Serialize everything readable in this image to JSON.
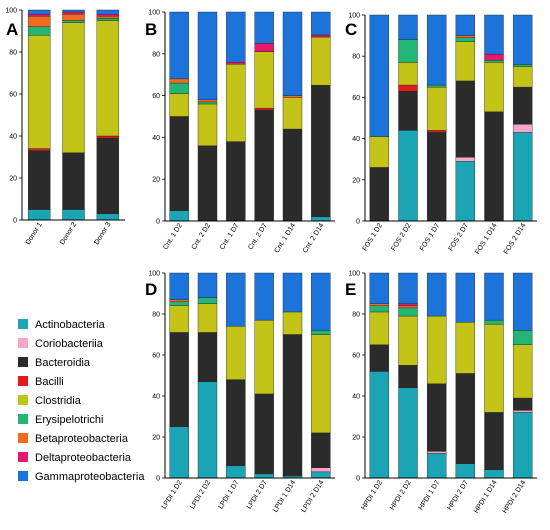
{
  "taxa": [
    {
      "name": "Actinobacteria",
      "color": "#1BA4B3"
    },
    {
      "name": "Coriobacteriia",
      "color": "#F4A7C8"
    },
    {
      "name": "Bacteroidia",
      "color": "#2B2B2B"
    },
    {
      "name": "Bacilli",
      "color": "#E31A1C"
    },
    {
      "name": "Clostridia",
      "color": "#C3C318"
    },
    {
      "name": "Erysipelotrichi",
      "color": "#22B573"
    },
    {
      "name": "Betaproteobacteria",
      "color": "#F26B21"
    },
    {
      "name": "Deltaproteobacteria",
      "color": "#E6186A"
    },
    {
      "name": "Gammaproteobacteria",
      "color": "#1C73D9"
    }
  ],
  "chart_data": [
    {
      "type": "bar",
      "panel": "A",
      "stacked": true,
      "ylim": [
        0,
        100
      ],
      "yticks": [
        0,
        20,
        40,
        60,
        80,
        100
      ],
      "categories": [
        "Donor 1",
        "Donor 2",
        "Donor 3"
      ],
      "series": [
        {
          "name": "Actinobacteria",
          "values": [
            5,
            5,
            3
          ]
        },
        {
          "name": "Coriobacteriia",
          "values": [
            0,
            0,
            0
          ]
        },
        {
          "name": "Bacteroidia",
          "values": [
            28,
            27,
            36
          ]
        },
        {
          "name": "Bacilli",
          "values": [
            1,
            0,
            1
          ]
        },
        {
          "name": "Clostridia",
          "values": [
            54,
            62,
            55
          ]
        },
        {
          "name": "Erysipelotrichi",
          "values": [
            4,
            1,
            1
          ]
        },
        {
          "name": "Betaproteobacteria",
          "values": [
            5,
            3,
            1
          ]
        },
        {
          "name": "Deltaproteobacteria",
          "values": [
            1,
            1,
            1
          ]
        },
        {
          "name": "Gammaproteobacteria",
          "values": [
            2,
            1,
            2
          ]
        }
      ]
    },
    {
      "type": "bar",
      "panel": "B",
      "stacked": true,
      "ylim": [
        0,
        100
      ],
      "yticks": [
        0,
        20,
        40,
        60,
        80,
        100
      ],
      "categories": [
        "Cnt. 1 D2",
        "Cnt. 2 D2",
        "Cnt. 1 D7",
        "Cnt. 2 D7",
        "Cnt. 1 D14",
        "Cnt. 2 D14"
      ],
      "series": [
        {
          "name": "Actinobacteria",
          "values": [
            5,
            0,
            0,
            0,
            0,
            2
          ]
        },
        {
          "name": "Coriobacteriia",
          "values": [
            0,
            0,
            0,
            0,
            0,
            0
          ]
        },
        {
          "name": "Bacteroidia",
          "values": [
            45,
            36,
            38,
            53,
            44,
            63
          ]
        },
        {
          "name": "Bacilli",
          "values": [
            0,
            0,
            0,
            1,
            0,
            0
          ]
        },
        {
          "name": "Clostridia",
          "values": [
            11,
            20,
            37,
            27,
            15,
            23
          ]
        },
        {
          "name": "Erysipelotrichi",
          "values": [
            5,
            1,
            0,
            0,
            0,
            0
          ]
        },
        {
          "name": "Betaproteobacteria",
          "values": [
            2,
            1,
            0,
            0,
            1,
            0
          ]
        },
        {
          "name": "Deltaproteobacteria",
          "values": [
            0,
            0,
            1,
            4,
            0,
            1
          ]
        },
        {
          "name": "Gammaproteobacteria",
          "values": [
            32,
            42,
            24,
            15,
            40,
            11
          ]
        }
      ]
    },
    {
      "type": "bar",
      "panel": "C",
      "stacked": true,
      "ylim": [
        0,
        100
      ],
      "yticks": [
        0,
        20,
        40,
        60,
        80,
        100
      ],
      "categories": [
        "FOS 1 D2",
        "FOS 2 D2",
        "FOS 1 D7",
        "FOS 2 D7",
        "FOS 1 D14",
        "FOS 2 D14"
      ],
      "series": [
        {
          "name": "Actinobacteria",
          "values": [
            0,
            44,
            0,
            29,
            0,
            43
          ]
        },
        {
          "name": "Coriobacteriia",
          "values": [
            0,
            0,
            0,
            2,
            0,
            4
          ]
        },
        {
          "name": "Bacteroidia",
          "values": [
            26,
            19,
            43,
            37,
            53,
            18
          ]
        },
        {
          "name": "Bacilli",
          "values": [
            0,
            3,
            1,
            0,
            0,
            0
          ]
        },
        {
          "name": "Clostridia",
          "values": [
            15,
            11,
            21,
            19,
            24,
            10
          ]
        },
        {
          "name": "Erysipelotrichi",
          "values": [
            0,
            11,
            1,
            2,
            1,
            1
          ]
        },
        {
          "name": "Betaproteobacteria",
          "values": [
            0,
            0,
            0,
            1,
            0,
            0
          ]
        },
        {
          "name": "Deltaproteobacteria",
          "values": [
            0,
            0,
            0,
            0,
            3,
            0
          ]
        },
        {
          "name": "Gammaproteobacteria",
          "values": [
            59,
            12,
            34,
            10,
            19,
            24
          ]
        }
      ]
    },
    {
      "type": "bar",
      "panel": "D",
      "stacked": true,
      "ylim": [
        0,
        100
      ],
      "yticks": [
        0,
        20,
        40,
        60,
        80,
        100
      ],
      "categories": [
        "LPDI 1 D2",
        "LPDI 2 D2",
        "LPDI 1 D7",
        "LPDI 2 D7",
        "LPDI 1 D14",
        "LPDI 2 D14"
      ],
      "series": [
        {
          "name": "Actinobacteria",
          "values": [
            25,
            47,
            6,
            2,
            1,
            3
          ]
        },
        {
          "name": "Coriobacteriia",
          "values": [
            0,
            0,
            0,
            0,
            0,
            2
          ]
        },
        {
          "name": "Bacteroidia",
          "values": [
            46,
            24,
            42,
            39,
            69,
            17
          ]
        },
        {
          "name": "Bacilli",
          "values": [
            0,
            0,
            0,
            0,
            0,
            0
          ]
        },
        {
          "name": "Clostridia",
          "values": [
            13,
            14,
            26,
            36,
            11,
            48
          ]
        },
        {
          "name": "Erysipelotrichi",
          "values": [
            2,
            3,
            0,
            0,
            0,
            2
          ]
        },
        {
          "name": "Betaproteobacteria",
          "values": [
            1,
            0,
            0,
            0,
            0,
            0
          ]
        },
        {
          "name": "Deltaproteobacteria",
          "values": [
            0,
            0,
            0,
            0,
            0,
            0
          ]
        },
        {
          "name": "Gammaproteobacteria",
          "values": [
            13,
            12,
            26,
            23,
            19,
            28
          ]
        }
      ]
    },
    {
      "type": "bar",
      "panel": "E",
      "stacked": true,
      "ylim": [
        0,
        100
      ],
      "yticks": [
        0,
        20,
        40,
        60,
        80,
        100
      ],
      "categories": [
        "HPDI 1 D2",
        "HPDI 2 D2",
        "HPDI 1 D7",
        "HPDI 2 D7",
        "HPDI 1 D14",
        "HPDI 2 D14"
      ],
      "series": [
        {
          "name": "Actinobacteria",
          "values": [
            52,
            44,
            12,
            7,
            4,
            32
          ]
        },
        {
          "name": "Coriobacteriia",
          "values": [
            0,
            0,
            1,
            0,
            0,
            1
          ]
        },
        {
          "name": "Bacteroidia",
          "values": [
            13,
            11,
            33,
            44,
            28,
            6
          ]
        },
        {
          "name": "Bacilli",
          "values": [
            0,
            0,
            0,
            0,
            0,
            0
          ]
        },
        {
          "name": "Clostridia",
          "values": [
            16,
            24,
            33,
            25,
            43,
            26
          ]
        },
        {
          "name": "Erysipelotrichi",
          "values": [
            3,
            4,
            0,
            0,
            2,
            7
          ]
        },
        {
          "name": "Betaproteobacteria",
          "values": [
            1,
            1,
            0,
            0,
            0,
            0
          ]
        },
        {
          "name": "Deltaproteobacteria",
          "values": [
            0,
            1,
            0,
            0,
            0,
            0
          ]
        },
        {
          "name": "Gammaproteobacteria",
          "values": [
            15,
            15,
            21,
            24,
            23,
            28
          ]
        }
      ]
    }
  ]
}
